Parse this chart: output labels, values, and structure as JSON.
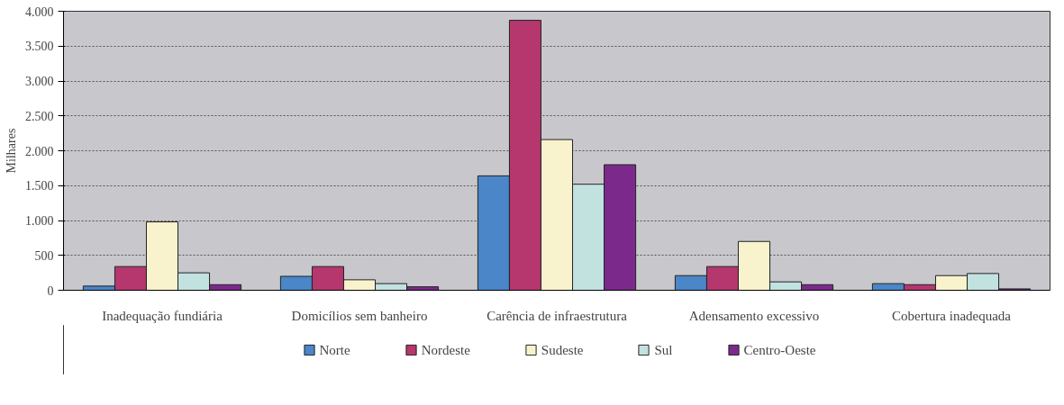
{
  "chart_data": {
    "type": "bar",
    "ylabel": "Milhares",
    "categories": [
      "Inadequação fundiária",
      "Domicílios sem banheiro",
      "Carência de infraestrutura",
      "Adensamento excessivo",
      "Cobertura inadequada"
    ],
    "series": [
      {
        "name": "Norte",
        "color": "#4a86c8",
        "values": [
          60,
          200,
          1640,
          210,
          95
        ]
      },
      {
        "name": "Nordeste",
        "color": "#b5376e",
        "values": [
          340,
          340,
          3870,
          340,
          80
        ]
      },
      {
        "name": "Sudeste",
        "color": "#f8f3cc",
        "values": [
          980,
          150,
          2160,
          700,
          210
        ]
      },
      {
        "name": "Sul",
        "color": "#c2e2e0",
        "values": [
          250,
          95,
          1520,
          120,
          240
        ]
      },
      {
        "name": "Centro-Oeste",
        "color": "#7b2a8c",
        "values": [
          80,
          50,
          1800,
          80,
          20
        ]
      }
    ],
    "ylim": [
      0,
      4000
    ],
    "yticks": [
      0,
      {
        "value": 500,
        "label": "500"
      },
      {
        "value": 1000,
        "label": "1.000"
      },
      {
        "value": 1500,
        "label": "1.500"
      },
      {
        "value": 2000,
        "label": "2.000"
      },
      {
        "value": 2500,
        "label": "2.500"
      },
      {
        "value": 3000,
        "label": "3.000"
      },
      {
        "value": 3500,
        "label": "3.500"
      },
      {
        "value": 4000,
        "label": "4.000"
      }
    ],
    "grid": "y",
    "legend": "bottom"
  }
}
